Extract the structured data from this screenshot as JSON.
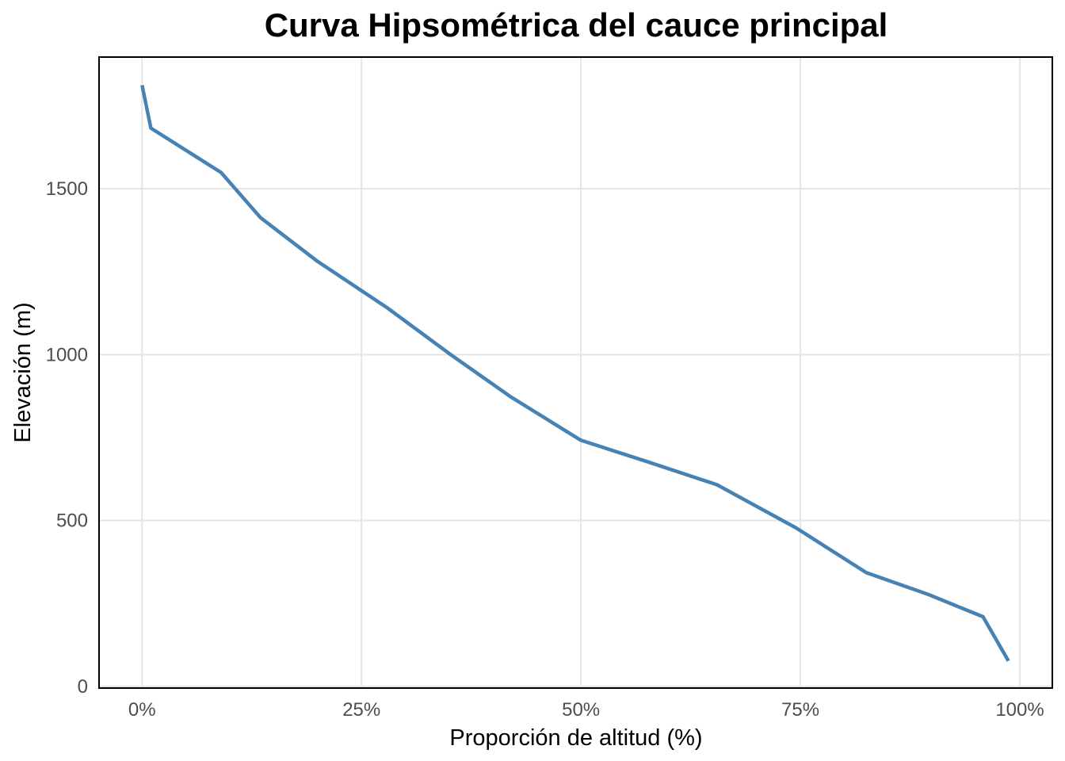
{
  "chart_data": {
    "type": "line",
    "title": "Curva Hipsométrica del cauce principal",
    "xlabel": "Proporción de altitud (%)",
    "ylabel": "Elevación (m)",
    "x_ticks": [
      {
        "value": 0,
        "label": "0%"
      },
      {
        "value": 25,
        "label": "25%"
      },
      {
        "value": 50,
        "label": "50%"
      },
      {
        "value": 75,
        "label": "75%"
      },
      {
        "value": 100,
        "label": "100%"
      }
    ],
    "y_ticks": [
      {
        "value": 0,
        "label": "0"
      },
      {
        "value": 500,
        "label": "500"
      },
      {
        "value": 1000,
        "label": "1000"
      },
      {
        "value": 1500,
        "label": "1500"
      }
    ],
    "xlim": [
      -4.9,
      103.7
    ],
    "ylim": [
      -5,
      1897
    ],
    "grid": true,
    "series": [
      {
        "color": "#4682b4",
        "x": [
          0,
          1.0,
          9.0,
          13.5,
          20,
          28,
          35,
          42,
          50,
          57.5,
          65.5,
          74.5,
          82.5,
          89.5,
          95.8,
          98.7
        ],
        "y": [
          1812,
          1683,
          1549,
          1413,
          1281,
          1140,
          1003,
          873,
          742,
          678,
          608,
          478,
          343,
          278,
          210,
          77
        ]
      }
    ]
  }
}
